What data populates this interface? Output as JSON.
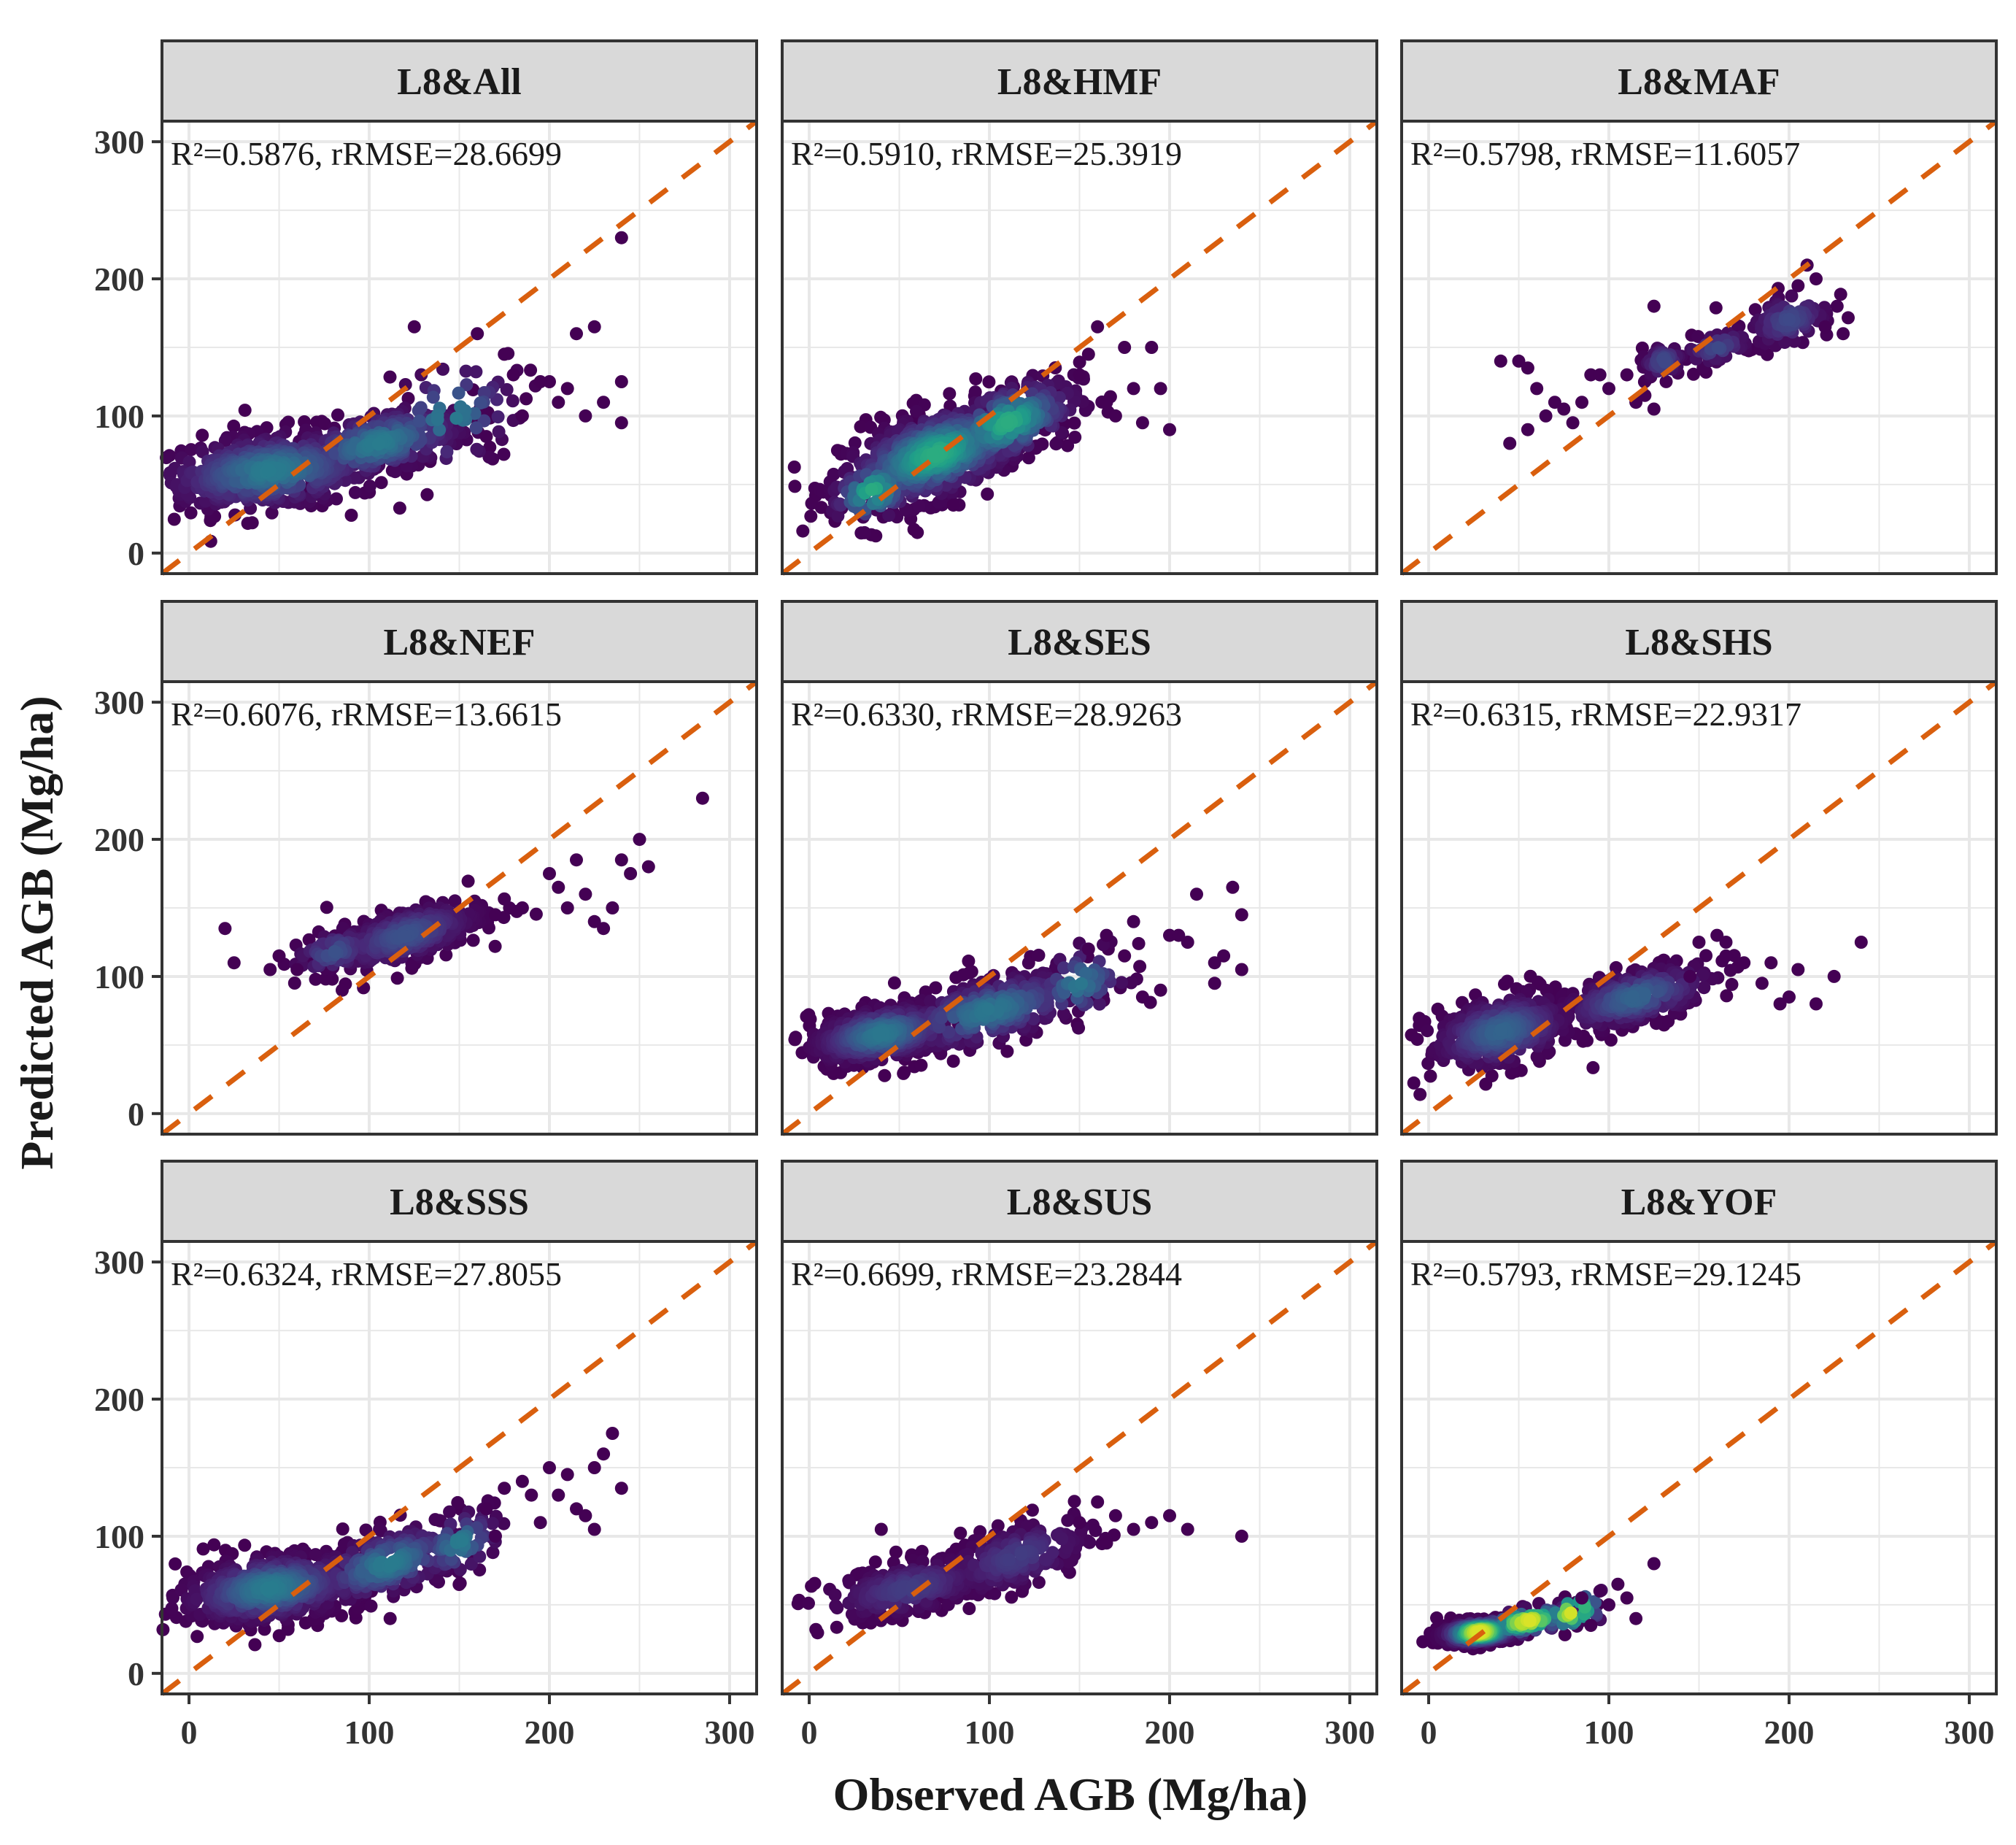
{
  "figure": {
    "xlabel": "Observed AGB (Mg/ha)",
    "ylabel": "Predicted AGB (Mg/ha)"
  },
  "chart_data": [
    {
      "type": "scatter",
      "panel": "L8&All",
      "annotation": "R²=0.5876, rRMSE=28.6699",
      "xlim": [
        -15,
        315
      ],
      "ylim": [
        -15,
        315
      ],
      "xticks": [
        0,
        100,
        200,
        300
      ],
      "yticks": [
        0,
        100,
        200,
        300
      ],
      "ref_line": "1:1",
      "clusters": [
        {
          "cx": 45,
          "cy": 60,
          "sx": 32,
          "sy": 14,
          "n": 500,
          "slope": 0.12
        },
        {
          "cx": 105,
          "cy": 80,
          "sx": 26,
          "sy": 12,
          "n": 260,
          "slope": 0.28
        },
        {
          "cx": 145,
          "cy": 100,
          "sx": 20,
          "sy": 20,
          "n": 60,
          "slope": 0.3
        }
      ],
      "outliers": [
        [
          125,
          165
        ],
        [
          160,
          160
        ],
        [
          180,
          130
        ],
        [
          185,
          100
        ],
        [
          200,
          125
        ],
        [
          205,
          110
        ],
        [
          215,
          160
        ],
        [
          225,
          165
        ],
        [
          220,
          100
        ],
        [
          230,
          110
        ],
        [
          240,
          125
        ],
        [
          240,
          95
        ],
        [
          195,
          125
        ],
        [
          210,
          120
        ],
        [
          240,
          230
        ],
        [
          165,
          85
        ],
        [
          175,
          145
        ]
      ]
    },
    {
      "type": "scatter",
      "panel": "L8&HMF",
      "annotation": "R²=0.5910, rRMSE=25.3919",
      "xlim": [
        -15,
        315
      ],
      "ylim": [
        -15,
        315
      ],
      "xticks": [
        0,
        100,
        200,
        300
      ],
      "yticks": [
        0,
        100,
        200,
        300
      ],
      "ref_line": "1:1",
      "clusters": [
        {
          "cx": 70,
          "cy": 72,
          "sx": 26,
          "sy": 16,
          "n": 600,
          "slope": 0.38
        },
        {
          "cx": 110,
          "cy": 95,
          "sx": 20,
          "sy": 14,
          "n": 220,
          "slope": 0.4
        },
        {
          "cx": 35,
          "cy": 45,
          "sx": 12,
          "sy": 12,
          "n": 80,
          "slope": 0.3
        }
      ],
      "outliers": [
        [
          160,
          165
        ],
        [
          175,
          150
        ],
        [
          180,
          120
        ],
        [
          190,
          150
        ],
        [
          200,
          90
        ],
        [
          185,
          95
        ],
        [
          170,
          100
        ],
        [
          165,
          110
        ],
        [
          155,
          145
        ],
        [
          195,
          120
        ],
        [
          150,
          130
        ],
        [
          60,
          15
        ],
        [
          80,
          35
        ]
      ]
    },
    {
      "type": "scatter",
      "panel": "L8&MAF",
      "annotation": "R²=0.5798, rRMSE=11.6057",
      "xlim": [
        -15,
        315
      ],
      "ylim": [
        -15,
        315
      ],
      "xticks": [
        0,
        100,
        200,
        300
      ],
      "yticks": [
        0,
        100,
        200,
        300
      ],
      "ref_line": "1:1",
      "clusters": [
        {
          "cx": 130,
          "cy": 140,
          "sx": 6,
          "sy": 6,
          "n": 70,
          "slope": 0.2
        },
        {
          "cx": 200,
          "cy": 170,
          "sx": 12,
          "sy": 10,
          "n": 90,
          "slope": 0.3
        },
        {
          "cx": 160,
          "cy": 150,
          "sx": 10,
          "sy": 6,
          "n": 40,
          "slope": 0.3
        }
      ],
      "outliers": [
        [
          40,
          140
        ],
        [
          50,
          140
        ],
        [
          55,
          135
        ],
        [
          60,
          120
        ],
        [
          70,
          110
        ],
        [
          75,
          105
        ],
        [
          80,
          95
        ],
        [
          85,
          110
        ],
        [
          90,
          130
        ],
        [
          95,
          130
        ],
        [
          100,
          120
        ],
        [
          110,
          130
        ],
        [
          115,
          110
        ],
        [
          120,
          115
        ],
        [
          125,
          105
        ],
        [
          65,
          100
        ],
        [
          45,
          80
        ],
        [
          55,
          90
        ],
        [
          125,
          180
        ],
        [
          210,
          210
        ],
        [
          205,
          195
        ],
        [
          215,
          200
        ],
        [
          220,
          165
        ],
        [
          230,
          160
        ]
      ]
    },
    {
      "type": "scatter",
      "panel": "L8&NEF",
      "annotation": "R²=0.6076, rRMSE=13.6615",
      "xlim": [
        -15,
        315
      ],
      "ylim": [
        -15,
        315
      ],
      "xticks": [
        0,
        100,
        200,
        300
      ],
      "yticks": [
        0,
        100,
        200,
        300
      ],
      "ref_line": "1:1",
      "clusters": [
        {
          "cx": 120,
          "cy": 130,
          "sx": 22,
          "sy": 10,
          "n": 300,
          "slope": 0.35
        },
        {
          "cx": 80,
          "cy": 118,
          "sx": 12,
          "sy": 8,
          "n": 60,
          "slope": 0.3
        }
      ],
      "outliers": [
        [
          20,
          135
        ],
        [
          25,
          110
        ],
        [
          45,
          105
        ],
        [
          50,
          115
        ],
        [
          60,
          105
        ],
        [
          85,
          90
        ],
        [
          170,
          145
        ],
        [
          185,
          150
        ],
        [
          200,
          175
        ],
        [
          205,
          165
        ],
        [
          215,
          185
        ],
        [
          220,
          160
        ],
        [
          225,
          140
        ],
        [
          235,
          150
        ],
        [
          240,
          185
        ],
        [
          250,
          200
        ],
        [
          255,
          180
        ],
        [
          245,
          175
        ],
        [
          285,
          230
        ],
        [
          230,
          135
        ],
        [
          210,
          150
        ]
      ]
    },
    {
      "type": "scatter",
      "panel": "L8&SES",
      "annotation": "R²=0.6330, rRMSE=28.9263",
      "xlim": [
        -15,
        315
      ],
      "ylim": [
        -15,
        315
      ],
      "xticks": [
        0,
        100,
        200,
        300
      ],
      "yticks": [
        0,
        100,
        200,
        300
      ],
      "ref_line": "1:1",
      "clusters": [
        {
          "cx": 40,
          "cy": 58,
          "sx": 20,
          "sy": 10,
          "n": 500,
          "slope": 0.2
        },
        {
          "cx": 100,
          "cy": 75,
          "sx": 28,
          "sy": 12,
          "n": 300,
          "slope": 0.3
        },
        {
          "cx": 150,
          "cy": 95,
          "sx": 14,
          "sy": 14,
          "n": 60,
          "slope": 0.3
        }
      ],
      "outliers": [
        [
          165,
          130
        ],
        [
          175,
          115
        ],
        [
          185,
          85
        ],
        [
          195,
          90
        ],
        [
          200,
          130
        ],
        [
          210,
          125
        ],
        [
          215,
          160
        ],
        [
          225,
          110
        ],
        [
          230,
          115
        ],
        [
          235,
          165
        ],
        [
          240,
          145
        ],
        [
          240,
          105
        ],
        [
          225,
          95
        ],
        [
          180,
          140
        ],
        [
          155,
          120
        ],
        [
          205,
          130
        ]
      ]
    },
    {
      "type": "scatter",
      "panel": "L8&SHS",
      "annotation": "R²=0.6315, rRMSE=22.9317",
      "xlim": [
        -15,
        315
      ],
      "ylim": [
        -15,
        315
      ],
      "xticks": [
        0,
        100,
        200,
        300
      ],
      "yticks": [
        0,
        100,
        200,
        300
      ],
      "ref_line": "1:1",
      "clusters": [
        {
          "cx": 40,
          "cy": 60,
          "sx": 20,
          "sy": 13,
          "n": 400,
          "slope": 0.25
        },
        {
          "cx": 115,
          "cy": 85,
          "sx": 22,
          "sy": 10,
          "n": 260,
          "slope": 0.3
        }
      ],
      "outliers": [
        [
          145,
          100
        ],
        [
          150,
          125
        ],
        [
          160,
          130
        ],
        [
          165,
          125
        ],
        [
          175,
          110
        ],
        [
          190,
          110
        ],
        [
          195,
          80
        ],
        [
          200,
          85
        ],
        [
          205,
          105
        ],
        [
          215,
          80
        ],
        [
          225,
          100
        ],
        [
          240,
          125
        ],
        [
          165,
          115
        ],
        [
          185,
          95
        ]
      ]
    },
    {
      "type": "scatter",
      "panel": "L8&SSS",
      "annotation": "R²=0.6324, rRMSE=27.8055",
      "xlim": [
        -15,
        315
      ],
      "ylim": [
        -15,
        315
      ],
      "xticks": [
        0,
        100,
        200,
        300
      ],
      "yticks": [
        0,
        100,
        200,
        300
      ],
      "ref_line": "1:1",
      "clusters": [
        {
          "cx": 45,
          "cy": 62,
          "sx": 25,
          "sy": 12,
          "n": 600,
          "slope": 0.15
        },
        {
          "cx": 110,
          "cy": 80,
          "sx": 22,
          "sy": 12,
          "n": 250,
          "slope": 0.35
        },
        {
          "cx": 150,
          "cy": 95,
          "sx": 12,
          "sy": 12,
          "n": 70,
          "slope": 0.4
        }
      ],
      "outliers": [
        [
          165,
          120
        ],
        [
          170,
          100
        ],
        [
          175,
          135
        ],
        [
          185,
          140
        ],
        [
          190,
          130
        ],
        [
          195,
          110
        ],
        [
          200,
          150
        ],
        [
          210,
          145
        ],
        [
          215,
          120
        ],
        [
          220,
          115
        ],
        [
          225,
          150
        ],
        [
          230,
          160
        ],
        [
          235,
          175
        ],
        [
          225,
          105
        ],
        [
          240,
          135
        ],
        [
          205,
          130
        ]
      ]
    },
    {
      "type": "scatter",
      "panel": "L8&SUS",
      "annotation": "R²=0.6699, rRMSE=23.2844",
      "xlim": [
        -15,
        315
      ],
      "ylim": [
        -15,
        315
      ],
      "xticks": [
        0,
        100,
        200,
        300
      ],
      "yticks": [
        0,
        100,
        200,
        300
      ],
      "ref_line": "1:1",
      "clusters": [
        {
          "cx": 55,
          "cy": 62,
          "sx": 24,
          "sy": 10,
          "n": 260,
          "slope": 0.25
        },
        {
          "cx": 115,
          "cy": 85,
          "sx": 22,
          "sy": 12,
          "n": 200,
          "slope": 0.35
        }
      ],
      "outliers": [
        [
          40,
          105
        ],
        [
          160,
          125
        ],
        [
          170,
          115
        ],
        [
          180,
          105
        ],
        [
          190,
          110
        ],
        [
          200,
          115
        ],
        [
          210,
          105
        ],
        [
          240,
          100
        ],
        [
          165,
          95
        ],
        [
          150,
          110
        ]
      ]
    },
    {
      "type": "scatter",
      "panel": "L8&YOF",
      "annotation": "R²=0.5793, rRMSE=29.1245",
      "xlim": [
        -15,
        315
      ],
      "ylim": [
        -15,
        315
      ],
      "xticks": [
        0,
        100,
        200,
        300
      ],
      "yticks": [
        0,
        100,
        200,
        300
      ],
      "ref_line": "1:1",
      "clusters": [
        {
          "cx": 28,
          "cy": 30,
          "sx": 10,
          "sy": 4,
          "n": 500,
          "slope": 0.1
        },
        {
          "cx": 55,
          "cy": 38,
          "sx": 14,
          "sy": 5,
          "n": 100,
          "slope": 0.2
        },
        {
          "cx": 80,
          "cy": 45,
          "sx": 10,
          "sy": 8,
          "n": 30,
          "slope": 0.3
        }
      ],
      "outliers": [
        [
          95,
          60
        ],
        [
          100,
          50
        ],
        [
          105,
          65
        ],
        [
          110,
          55
        ],
        [
          115,
          40
        ],
        [
          125,
          80
        ],
        [
          90,
          35
        ],
        [
          85,
          55
        ]
      ]
    }
  ]
}
